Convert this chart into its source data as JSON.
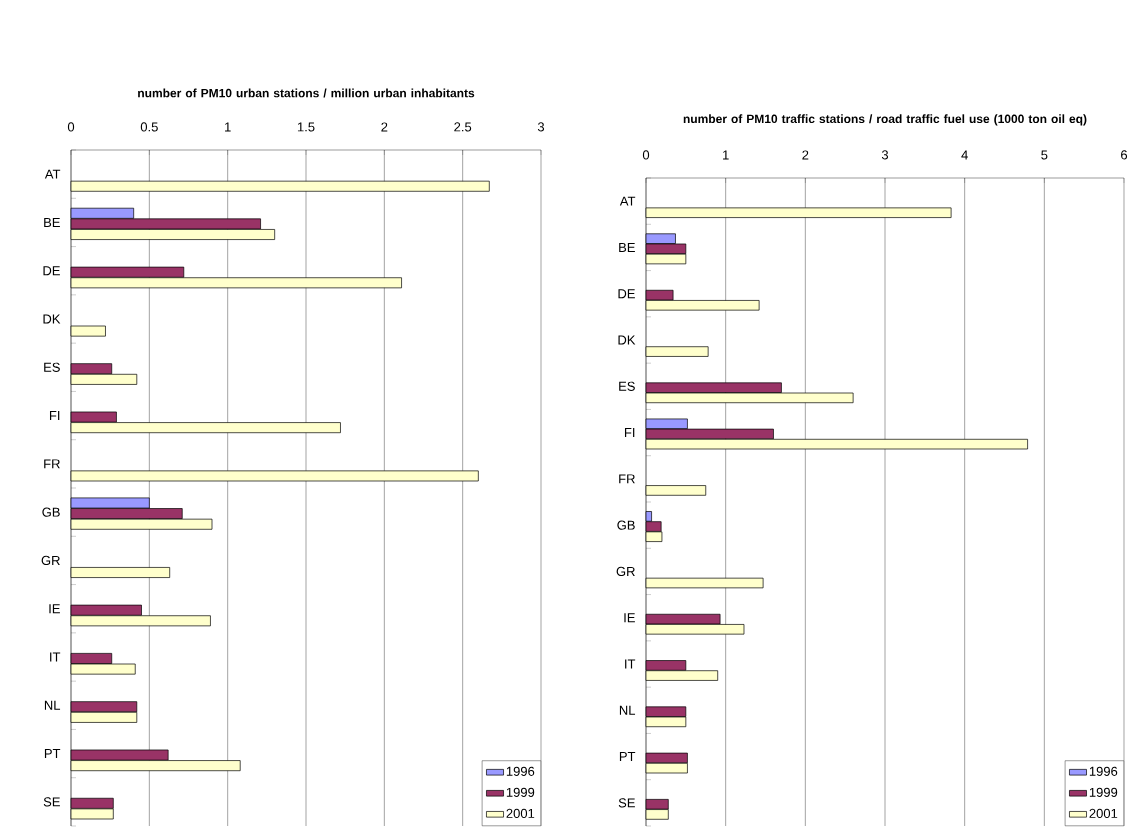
{
  "chart_data": [
    {
      "type": "bar",
      "orientation": "horizontal",
      "title": "number of PM10 urban stations / million urban inhabitants",
      "categories": [
        "AT",
        "BE",
        "DE",
        "DK",
        "ES",
        "FI",
        "FR",
        "GB",
        "GR",
        "IE",
        "IT",
        "NL",
        "PT",
        "SE"
      ],
      "series": [
        {
          "name": "1996",
          "color": "#9999ff",
          "values": [
            null,
            0.4,
            null,
            null,
            null,
            null,
            null,
            0.5,
            null,
            null,
            null,
            null,
            null,
            null
          ]
        },
        {
          "name": "1999",
          "color": "#993366",
          "values": [
            null,
            1.21,
            0.72,
            null,
            0.26,
            0.29,
            null,
            0.71,
            null,
            0.45,
            0.26,
            0.42,
            0.62,
            0.27
          ]
        },
        {
          "name": "2001",
          "color": "#ffffcc",
          "values": [
            2.67,
            1.3,
            2.11,
            0.22,
            0.42,
            1.72,
            2.6,
            0.9,
            0.63,
            0.89,
            0.41,
            0.42,
            1.08,
            0.27
          ]
        }
      ],
      "xlim": [
        0,
        3
      ],
      "xticks": [
        0,
        0.5,
        1,
        1.5,
        2,
        2.5,
        3
      ],
      "grid": "x",
      "legend": "bottom right"
    },
    {
      "type": "bar",
      "orientation": "horizontal",
      "title": "number of PM10 traffic stations / road traffic fuel use (1000 ton oil eq)",
      "categories": [
        "AT",
        "BE",
        "DE",
        "DK",
        "ES",
        "FI",
        "FR",
        "GB",
        "GR",
        "IE",
        "IT",
        "NL",
        "PT",
        "SE"
      ],
      "series": [
        {
          "name": "1996",
          "color": "#9999ff",
          "values": [
            null,
            0.37,
            null,
            null,
            null,
            0.52,
            null,
            0.07,
            null,
            null,
            null,
            null,
            null,
            null
          ]
        },
        {
          "name": "1999",
          "color": "#993366",
          "values": [
            null,
            0.5,
            0.34,
            null,
            1.7,
            1.6,
            null,
            0.19,
            null,
            0.93,
            0.5,
            0.5,
            0.52,
            0.28
          ]
        },
        {
          "name": "2001",
          "color": "#ffffcc",
          "values": [
            3.83,
            0.5,
            1.42,
            0.78,
            2.6,
            4.79,
            0.75,
            0.2,
            1.47,
            1.23,
            0.9,
            0.5,
            0.52,
            0.28
          ]
        }
      ],
      "xlim": [
        0,
        6
      ],
      "xticks": [
        0,
        1,
        2,
        3,
        4,
        5,
        6
      ],
      "grid": "x",
      "legend": "bottom right"
    }
  ]
}
